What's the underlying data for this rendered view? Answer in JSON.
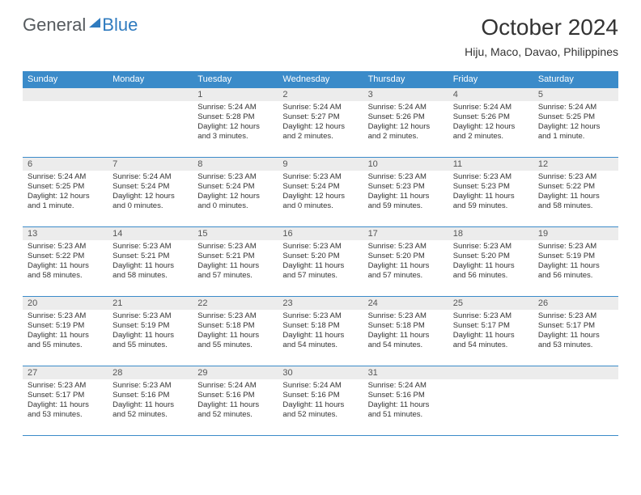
{
  "logo": {
    "text1": "General",
    "text2": "Blue"
  },
  "title": "October 2024",
  "location": "Hiju, Maco, Davao, Philippines",
  "colors": {
    "header_bg": "#3b8bc9",
    "header_text": "#ffffff",
    "day_num_bg": "#ececec",
    "text": "#333333",
    "logo_blue": "#2f7bbf"
  },
  "weekdays": [
    "Sunday",
    "Monday",
    "Tuesday",
    "Wednesday",
    "Thursday",
    "Friday",
    "Saturday"
  ],
  "weeks": [
    [
      null,
      null,
      {
        "d": "1",
        "sr": "5:24 AM",
        "ss": "5:28 PM",
        "dl": "12 hours and 3 minutes."
      },
      {
        "d": "2",
        "sr": "5:24 AM",
        "ss": "5:27 PM",
        "dl": "12 hours and 2 minutes."
      },
      {
        "d": "3",
        "sr": "5:24 AM",
        "ss": "5:26 PM",
        "dl": "12 hours and 2 minutes."
      },
      {
        "d": "4",
        "sr": "5:24 AM",
        "ss": "5:26 PM",
        "dl": "12 hours and 2 minutes."
      },
      {
        "d": "5",
        "sr": "5:24 AM",
        "ss": "5:25 PM",
        "dl": "12 hours and 1 minute."
      }
    ],
    [
      {
        "d": "6",
        "sr": "5:24 AM",
        "ss": "5:25 PM",
        "dl": "12 hours and 1 minute."
      },
      {
        "d": "7",
        "sr": "5:24 AM",
        "ss": "5:24 PM",
        "dl": "12 hours and 0 minutes."
      },
      {
        "d": "8",
        "sr": "5:23 AM",
        "ss": "5:24 PM",
        "dl": "12 hours and 0 minutes."
      },
      {
        "d": "9",
        "sr": "5:23 AM",
        "ss": "5:24 PM",
        "dl": "12 hours and 0 minutes."
      },
      {
        "d": "10",
        "sr": "5:23 AM",
        "ss": "5:23 PM",
        "dl": "11 hours and 59 minutes."
      },
      {
        "d": "11",
        "sr": "5:23 AM",
        "ss": "5:23 PM",
        "dl": "11 hours and 59 minutes."
      },
      {
        "d": "12",
        "sr": "5:23 AM",
        "ss": "5:22 PM",
        "dl": "11 hours and 58 minutes."
      }
    ],
    [
      {
        "d": "13",
        "sr": "5:23 AM",
        "ss": "5:22 PM",
        "dl": "11 hours and 58 minutes."
      },
      {
        "d": "14",
        "sr": "5:23 AM",
        "ss": "5:21 PM",
        "dl": "11 hours and 58 minutes."
      },
      {
        "d": "15",
        "sr": "5:23 AM",
        "ss": "5:21 PM",
        "dl": "11 hours and 57 minutes."
      },
      {
        "d": "16",
        "sr": "5:23 AM",
        "ss": "5:20 PM",
        "dl": "11 hours and 57 minutes."
      },
      {
        "d": "17",
        "sr": "5:23 AM",
        "ss": "5:20 PM",
        "dl": "11 hours and 57 minutes."
      },
      {
        "d": "18",
        "sr": "5:23 AM",
        "ss": "5:20 PM",
        "dl": "11 hours and 56 minutes."
      },
      {
        "d": "19",
        "sr": "5:23 AM",
        "ss": "5:19 PM",
        "dl": "11 hours and 56 minutes."
      }
    ],
    [
      {
        "d": "20",
        "sr": "5:23 AM",
        "ss": "5:19 PM",
        "dl": "11 hours and 55 minutes."
      },
      {
        "d": "21",
        "sr": "5:23 AM",
        "ss": "5:19 PM",
        "dl": "11 hours and 55 minutes."
      },
      {
        "d": "22",
        "sr": "5:23 AM",
        "ss": "5:18 PM",
        "dl": "11 hours and 55 minutes."
      },
      {
        "d": "23",
        "sr": "5:23 AM",
        "ss": "5:18 PM",
        "dl": "11 hours and 54 minutes."
      },
      {
        "d": "24",
        "sr": "5:23 AM",
        "ss": "5:18 PM",
        "dl": "11 hours and 54 minutes."
      },
      {
        "d": "25",
        "sr": "5:23 AM",
        "ss": "5:17 PM",
        "dl": "11 hours and 54 minutes."
      },
      {
        "d": "26",
        "sr": "5:23 AM",
        "ss": "5:17 PM",
        "dl": "11 hours and 53 minutes."
      }
    ],
    [
      {
        "d": "27",
        "sr": "5:23 AM",
        "ss": "5:17 PM",
        "dl": "11 hours and 53 minutes."
      },
      {
        "d": "28",
        "sr": "5:23 AM",
        "ss": "5:16 PM",
        "dl": "11 hours and 52 minutes."
      },
      {
        "d": "29",
        "sr": "5:24 AM",
        "ss": "5:16 PM",
        "dl": "11 hours and 52 minutes."
      },
      {
        "d": "30",
        "sr": "5:24 AM",
        "ss": "5:16 PM",
        "dl": "11 hours and 52 minutes."
      },
      {
        "d": "31",
        "sr": "5:24 AM",
        "ss": "5:16 PM",
        "dl": "11 hours and 51 minutes."
      },
      null,
      null
    ]
  ],
  "labels": {
    "sunrise": "Sunrise:",
    "sunset": "Sunset:",
    "daylight": "Daylight:"
  }
}
